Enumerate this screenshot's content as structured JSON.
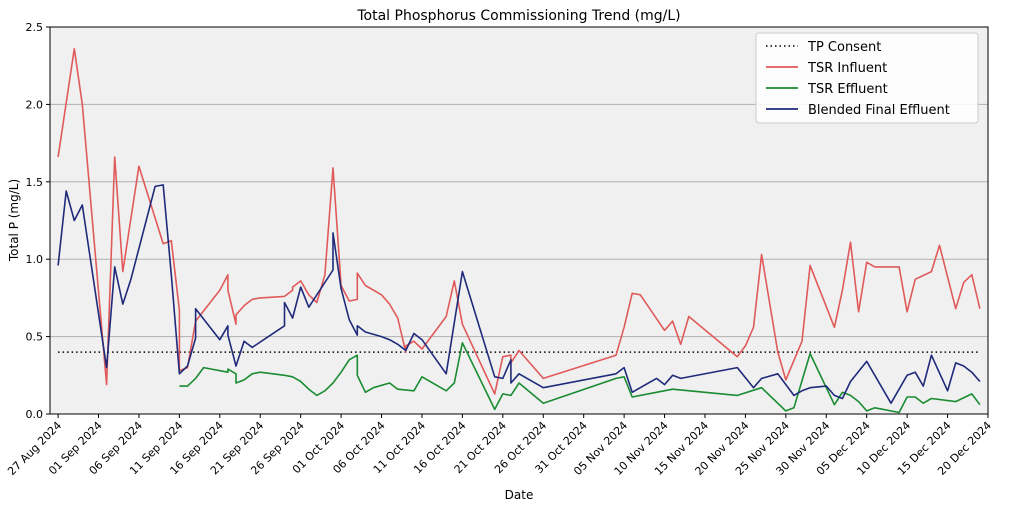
{
  "chart_data": {
    "type": "line",
    "title": "Total Phosphorus Commissioning Trend (mg/L)",
    "xlabel": "Date",
    "ylabel": "Total P (mg/L)",
    "ylim": [
      0,
      2.5
    ],
    "yticks": [
      0.0,
      0.5,
      1.0,
      1.5,
      2.0,
      2.5
    ],
    "ytick_labels": [
      "0.0",
      "0.5",
      "1.0",
      "1.5",
      "2.0",
      "2.5"
    ],
    "xlim": [
      "2024-08-26",
      "2024-12-20"
    ],
    "xticks": [
      "2024-08-27",
      "2024-09-01",
      "2024-09-06",
      "2024-09-11",
      "2024-09-16",
      "2024-09-21",
      "2024-09-26",
      "2024-10-01",
      "2024-10-06",
      "2024-10-11",
      "2024-10-16",
      "2024-10-21",
      "2024-10-26",
      "2024-10-31",
      "2024-11-05",
      "2024-11-10",
      "2024-11-15",
      "2024-11-20",
      "2024-11-25",
      "2024-11-30",
      "2024-12-05",
      "2024-12-10",
      "2024-12-15",
      "2024-12-20"
    ],
    "xtick_labels": [
      "27 Aug 2024",
      "01 Sep 2024",
      "06 Sep 2024",
      "11 Sep 2024",
      "16 Sep 2024",
      "21 Sep 2024",
      "26 Sep 2024",
      "01 Oct 2024",
      "06 Oct 2024",
      "11 Oct 2024",
      "16 Oct 2024",
      "21 Oct 2024",
      "26 Oct 2024",
      "31 Oct 2024",
      "05 Nov 2024",
      "10 Nov 2024",
      "15 Nov 2024",
      "20 Nov 2024",
      "25 Nov 2024",
      "30 Nov 2024",
      "05 Dec 2024",
      "10 Dec 2024",
      "15 Dec 2024",
      "20 Dec 2024"
    ],
    "grid": "horizontal",
    "legend_position": "top-right",
    "series": [
      {
        "name": "TP Consent",
        "color": "#000000",
        "style": "dotted",
        "points": [
          [
            "2024-08-27",
            0.4
          ],
          [
            "2024-12-19",
            0.4
          ]
        ]
      },
      {
        "name": "TSR Influent",
        "color": "#e05a5a",
        "style": "solid",
        "points": [
          [
            "2024-08-27",
            1.66
          ],
          [
            "2024-08-29",
            2.36
          ],
          [
            "2024-08-30",
            2.0
          ],
          [
            "2024-09-02",
            0.19
          ],
          [
            "2024-09-03",
            1.66
          ],
          [
            "2024-09-04",
            0.92
          ],
          [
            "2024-09-06",
            1.6
          ],
          [
            "2024-09-09",
            1.1
          ],
          [
            "2024-09-10",
            1.12
          ],
          [
            "2024-09-11",
            0.67
          ],
          [
            "2024-09-11",
            0.28
          ],
          [
            "2024-09-12",
            0.3
          ],
          [
            "2024-09-13",
            0.6
          ],
          [
            "2024-09-16",
            0.8
          ],
          [
            "2024-09-17",
            0.9
          ],
          [
            "2024-09-17",
            0.8
          ],
          [
            "2024-09-18",
            0.58
          ],
          [
            "2024-09-18",
            0.64
          ],
          [
            "2024-09-19",
            0.7
          ],
          [
            "2024-09-20",
            0.74
          ],
          [
            "2024-09-21",
            0.75
          ],
          [
            "2024-09-24",
            0.76
          ],
          [
            "2024-09-25",
            0.8
          ],
          [
            "2024-09-25",
            0.82
          ],
          [
            "2024-09-26",
            0.86
          ],
          [
            "2024-09-27",
            0.77
          ],
          [
            "2024-09-28",
            0.72
          ],
          [
            "2024-09-29",
            0.9
          ],
          [
            "2024-09-30",
            1.59
          ],
          [
            "2024-10-01",
            0.83
          ],
          [
            "2024-10-02",
            0.73
          ],
          [
            "2024-10-03",
            0.74
          ],
          [
            "2024-10-03",
            0.91
          ],
          [
            "2024-10-04",
            0.83
          ],
          [
            "2024-10-06",
            0.77
          ],
          [
            "2024-10-07",
            0.71
          ],
          [
            "2024-10-08",
            0.62
          ],
          [
            "2024-10-09",
            0.4
          ],
          [
            "2024-10-09",
            0.44
          ],
          [
            "2024-10-10",
            0.47
          ],
          [
            "2024-10-11",
            0.42
          ],
          [
            "2024-10-14",
            0.63
          ],
          [
            "2024-10-15",
            0.86
          ],
          [
            "2024-10-16",
            0.58
          ],
          [
            "2024-10-20",
            0.13
          ],
          [
            "2024-10-21",
            0.37
          ],
          [
            "2024-10-22",
            0.38
          ],
          [
            "2024-10-22",
            0.33
          ],
          [
            "2024-10-23",
            0.41
          ],
          [
            "2024-10-26",
            0.23
          ],
          [
            "2024-11-04",
            0.38
          ],
          [
            "2024-11-05",
            0.56
          ],
          [
            "2024-11-06",
            0.78
          ],
          [
            "2024-11-07",
            0.77
          ],
          [
            "2024-11-10",
            0.54
          ],
          [
            "2024-11-11",
            0.6
          ],
          [
            "2024-11-12",
            0.45
          ],
          [
            "2024-11-13",
            0.63
          ],
          [
            "2024-11-19",
            0.37
          ],
          [
            "2024-11-20",
            0.44
          ],
          [
            "2024-11-21",
            0.56
          ],
          [
            "2024-11-22",
            1.03
          ],
          [
            "2024-11-24",
            0.4
          ],
          [
            "2024-11-25",
            0.22
          ],
          [
            "2024-11-27",
            0.47
          ],
          [
            "2024-11-28",
            0.96
          ],
          [
            "2024-12-01",
            0.56
          ],
          [
            "2024-12-02",
            0.8
          ],
          [
            "2024-12-03",
            1.11
          ],
          [
            "2024-12-04",
            0.66
          ],
          [
            "2024-12-05",
            0.98
          ],
          [
            "2024-12-06",
            0.95
          ],
          [
            "2024-12-09",
            0.95
          ],
          [
            "2024-12-10",
            0.66
          ],
          [
            "2024-12-11",
            0.87
          ],
          [
            "2024-12-13",
            0.92
          ],
          [
            "2024-12-14",
            1.09
          ],
          [
            "2024-12-16",
            0.68
          ],
          [
            "2024-12-17",
            0.85
          ],
          [
            "2024-12-18",
            0.9
          ],
          [
            "2024-12-19",
            0.68
          ]
        ]
      },
      {
        "name": "TSR Effluent",
        "color": "#1a8c32",
        "style": "solid",
        "points": [
          [
            "2024-09-11",
            0.18
          ],
          [
            "2024-09-12",
            0.18
          ],
          [
            "2024-09-13",
            0.23
          ],
          [
            "2024-09-14",
            0.3
          ],
          [
            "2024-09-17",
            0.27
          ],
          [
            "2024-09-17",
            0.29
          ],
          [
            "2024-09-18",
            0.26
          ],
          [
            "2024-09-18",
            0.2
          ],
          [
            "2024-09-19",
            0.22
          ],
          [
            "2024-09-20",
            0.26
          ],
          [
            "2024-09-21",
            0.27
          ],
          [
            "2024-09-24",
            0.25
          ],
          [
            "2024-09-25",
            0.24
          ],
          [
            "2024-09-26",
            0.21
          ],
          [
            "2024-09-27",
            0.16
          ],
          [
            "2024-09-28",
            0.12
          ],
          [
            "2024-09-29",
            0.15
          ],
          [
            "2024-09-30",
            0.2
          ],
          [
            "2024-10-01",
            0.27
          ],
          [
            "2024-10-02",
            0.35
          ],
          [
            "2024-10-03",
            0.38
          ],
          [
            "2024-10-03",
            0.25
          ],
          [
            "2024-10-04",
            0.14
          ],
          [
            "2024-10-04",
            0.14
          ],
          [
            "2024-10-05",
            0.17
          ],
          [
            "2024-10-07",
            0.2
          ],
          [
            "2024-10-08",
            0.16
          ],
          [
            "2024-10-10",
            0.15
          ],
          [
            "2024-10-11",
            0.24
          ],
          [
            "2024-10-14",
            0.15
          ],
          [
            "2024-10-15",
            0.2
          ],
          [
            "2024-10-16",
            0.46
          ],
          [
            "2024-10-20",
            0.03
          ],
          [
            "2024-10-21",
            0.13
          ],
          [
            "2024-10-22",
            0.12
          ],
          [
            "2024-10-23",
            0.2
          ],
          [
            "2024-10-26",
            0.07
          ],
          [
            "2024-11-04",
            0.23
          ],
          [
            "2024-11-05",
            0.24
          ],
          [
            "2024-11-06",
            0.11
          ],
          [
            "2024-11-11",
            0.16
          ],
          [
            "2024-11-19",
            0.12
          ],
          [
            "2024-11-22",
            0.17
          ],
          [
            "2024-11-25",
            0.02
          ],
          [
            "2024-11-26",
            0.04
          ],
          [
            "2024-11-28",
            0.39
          ],
          [
            "2024-12-01",
            0.06
          ],
          [
            "2024-12-02",
            0.14
          ],
          [
            "2024-12-03",
            0.12
          ],
          [
            "2024-12-04",
            0.08
          ],
          [
            "2024-12-05",
            0.02
          ],
          [
            "2024-12-06",
            0.04
          ],
          [
            "2024-12-09",
            0.01
          ],
          [
            "2024-12-10",
            0.11
          ],
          [
            "2024-12-11",
            0.11
          ],
          [
            "2024-12-12",
            0.07
          ],
          [
            "2024-12-13",
            0.1
          ],
          [
            "2024-12-16",
            0.08
          ],
          [
            "2024-12-18",
            0.13
          ],
          [
            "2024-12-19",
            0.06
          ]
        ]
      },
      {
        "name": "Blended Final Effluent",
        "color": "#1f2a7a",
        "style": "solid",
        "points": [
          [
            "2024-08-27",
            0.96
          ],
          [
            "2024-08-28",
            1.44
          ],
          [
            "2024-08-29",
            1.25
          ],
          [
            "2024-08-30",
            1.35
          ],
          [
            "2024-09-02",
            0.3
          ],
          [
            "2024-09-03",
            0.95
          ],
          [
            "2024-09-04",
            0.71
          ],
          [
            "2024-09-05",
            0.87
          ],
          [
            "2024-09-08",
            1.47
          ],
          [
            "2024-09-09",
            1.48
          ],
          [
            "2024-09-10",
            0.9
          ],
          [
            "2024-09-11",
            0.26
          ],
          [
            "2024-09-12",
            0.31
          ],
          [
            "2024-09-13",
            0.49
          ],
          [
            "2024-09-13",
            0.68
          ],
          [
            "2024-09-16",
            0.48
          ],
          [
            "2024-09-17",
            0.57
          ],
          [
            "2024-09-17",
            0.51
          ],
          [
            "2024-09-18",
            0.31
          ],
          [
            "2024-09-19",
            0.47
          ],
          [
            "2024-09-20",
            0.43
          ],
          [
            "2024-09-24",
            0.57
          ],
          [
            "2024-09-24",
            0.72
          ],
          [
            "2024-09-25",
            0.62
          ],
          [
            "2024-09-26",
            0.82
          ],
          [
            "2024-09-27",
            0.69
          ],
          [
            "2024-09-30",
            0.93
          ],
          [
            "2024-09-30",
            1.17
          ],
          [
            "2024-10-01",
            0.81
          ],
          [
            "2024-10-02",
            0.61
          ],
          [
            "2024-10-03",
            0.51
          ],
          [
            "2024-10-03",
            0.57
          ],
          [
            "2024-10-04",
            0.53
          ],
          [
            "2024-10-06",
            0.5
          ],
          [
            "2024-10-07",
            0.48
          ],
          [
            "2024-10-08",
            0.45
          ],
          [
            "2024-10-09",
            0.41
          ],
          [
            "2024-10-10",
            0.52
          ],
          [
            "2024-10-11",
            0.48
          ],
          [
            "2024-10-14",
            0.26
          ],
          [
            "2024-10-16",
            0.92
          ],
          [
            "2024-10-20",
            0.24
          ],
          [
            "2024-10-21",
            0.23
          ],
          [
            "2024-10-22",
            0.35
          ],
          [
            "2024-10-22",
            0.2
          ],
          [
            "2024-10-23",
            0.26
          ],
          [
            "2024-10-26",
            0.17
          ],
          [
            "2024-11-04",
            0.26
          ],
          [
            "2024-11-05",
            0.3
          ],
          [
            "2024-11-06",
            0.14
          ],
          [
            "2024-11-09",
            0.23
          ],
          [
            "2024-11-10",
            0.19
          ],
          [
            "2024-11-11",
            0.25
          ],
          [
            "2024-11-12",
            0.23
          ],
          [
            "2024-11-19",
            0.3
          ],
          [
            "2024-11-21",
            0.17
          ],
          [
            "2024-11-22",
            0.23
          ],
          [
            "2024-11-24",
            0.26
          ],
          [
            "2024-11-26",
            0.12
          ],
          [
            "2024-11-27",
            0.15
          ],
          [
            "2024-11-28",
            0.17
          ],
          [
            "2024-11-30",
            0.18
          ],
          [
            "2024-12-01",
            0.12
          ],
          [
            "2024-12-02",
            0.1
          ],
          [
            "2024-12-03",
            0.21
          ],
          [
            "2024-12-05",
            0.34
          ],
          [
            "2024-12-08",
            0.07
          ],
          [
            "2024-12-10",
            0.25
          ],
          [
            "2024-12-11",
            0.27
          ],
          [
            "2024-12-12",
            0.18
          ],
          [
            "2024-12-13",
            0.38
          ],
          [
            "2024-12-15",
            0.15
          ],
          [
            "2024-12-16",
            0.33
          ],
          [
            "2024-12-17",
            0.31
          ],
          [
            "2024-12-18",
            0.27
          ],
          [
            "2024-12-19",
            0.21
          ]
        ]
      }
    ]
  }
}
